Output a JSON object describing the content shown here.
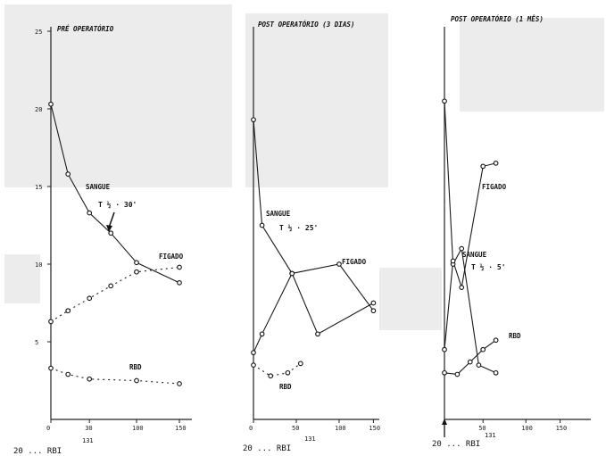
{
  "chart_data": [
    {
      "type": "line",
      "title": "PRÉ OPERATÓRIO",
      "x_ticks": [
        "0",
        "30",
        "100",
        "150"
      ],
      "y_ticks": [
        "5",
        "10",
        "15",
        "20",
        "25"
      ],
      "ylim": [
        0,
        25
      ],
      "footer": "20 ... RBI",
      "footer_sup": "131",
      "series": [
        {
          "name": "SANGUE",
          "style": "solid",
          "x": [
            0,
            20,
            45,
            70,
            100,
            150
          ],
          "y": [
            20.3,
            15.8,
            13.3,
            12.0,
            10.1,
            8.8
          ]
        },
        {
          "name": "FIGADO",
          "style": "dashed",
          "x": [
            0,
            20,
            45,
            70,
            100,
            150
          ],
          "y": [
            6.3,
            7.0,
            7.8,
            8.6,
            9.5,
            9.8
          ]
        },
        {
          "name": "RBD",
          "style": "dashed",
          "x": [
            0,
            20,
            45,
            100,
            150
          ],
          "y": [
            3.3,
            2.9,
            2.6,
            2.5,
            2.3
          ]
        }
      ],
      "annotation": "T ½ · 30'",
      "annotation_sub": "½"
    },
    {
      "type": "line",
      "title": "POST OPERATÓRIO (3 DIAS)",
      "x_ticks": [
        "0",
        "50",
        "100",
        "150"
      ],
      "y_ticks": [],
      "ylim": [
        0,
        25
      ],
      "footer": "20 ... RBI",
      "footer_sup": "131",
      "series": [
        {
          "name": "SANGUE",
          "style": "solid",
          "x": [
            0,
            10,
            45,
            75,
            140
          ],
          "y": [
            19.3,
            12.5,
            9.4,
            5.5,
            7.5
          ]
        },
        {
          "name": "FIGADO",
          "style": "solid",
          "x": [
            0,
            10,
            45,
            100,
            140
          ],
          "y": [
            4.3,
            5.5,
            9.4,
            10.0,
            7.0
          ]
        },
        {
          "name": "RBD",
          "style": "dashed",
          "x": [
            0,
            20,
            40,
            55
          ],
          "y": [
            3.5,
            2.8,
            3.0,
            3.6
          ]
        }
      ],
      "annotation": "T ½ · 25'",
      "annotation_sub": "½"
    },
    {
      "type": "line",
      "title": "POST OPERATÓRIO (1 MÊS)",
      "x_ticks": [
        "50",
        "100",
        "150"
      ],
      "y_ticks": [],
      "ylim": [
        0,
        25
      ],
      "footer": "20 ... RBI",
      "footer_sup": "131",
      "series": [
        {
          "name": "SANGUE",
          "style": "solid",
          "x": [
            0,
            10,
            20,
            40,
            60
          ],
          "y": [
            20.5,
            10.0,
            11.0,
            3.5,
            3.0
          ]
        },
        {
          "name": "FIGADO",
          "style": "solid",
          "x": [
            0,
            10,
            20,
            45,
            60
          ],
          "y": [
            4.5,
            10.2,
            8.5,
            16.3,
            16.5
          ]
        },
        {
          "name": "RBD",
          "style": "solid",
          "x": [
            0,
            15,
            30,
            45,
            60
          ],
          "y": [
            3.0,
            2.9,
            3.7,
            4.5,
            5.1
          ]
        }
      ],
      "annotation": "T ½ · 5'",
      "annotation_sub": "½"
    }
  ]
}
